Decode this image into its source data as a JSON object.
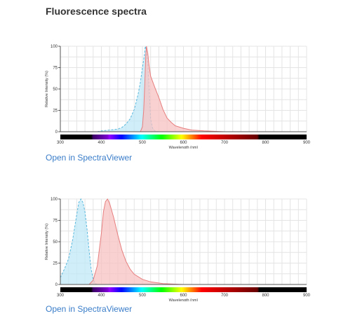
{
  "page_title": "Fluorescence spectra",
  "link_color": "#3a7dc9",
  "colors": {
    "excitation_fill": "#bfe8f7",
    "excitation_line": "#5bb8dc",
    "emission_fill": "#f7c1c1",
    "emission_line": "#e77e7e",
    "grid": "#e4e4e4",
    "axis": "#555555"
  },
  "chart_data": [
    {
      "type": "area",
      "xlabel": "Wavelength (nm)",
      "ylabel": "Relative Intensity (%)",
      "xlim": [
        300,
        900
      ],
      "ylim": [
        0,
        100
      ],
      "x_ticks": [
        "300",
        "400",
        "500",
        "600",
        "700",
        "800",
        "900"
      ],
      "y_ticks": [
        "0",
        "25",
        "50",
        "75",
        "100"
      ],
      "grid": true,
      "spectrum_bar": true,
      "link_label": "Open in SpectraViewer",
      "series": [
        {
          "role": "excitation",
          "line_style": "dashed",
          "points": [
            [
              390,
              0
            ],
            [
              400,
              1
            ],
            [
              420,
              2
            ],
            [
              440,
              3
            ],
            [
              450,
              5
            ],
            [
              460,
              9
            ],
            [
              470,
              15
            ],
            [
              480,
              26
            ],
            [
              485,
              35
            ],
            [
              490,
              45
            ],
            [
              495,
              58
            ],
            [
              500,
              75
            ],
            [
              505,
              90
            ],
            [
              507,
              100
            ],
            [
              510,
              96
            ],
            [
              513,
              80
            ],
            [
              517,
              45
            ],
            [
              520,
              15
            ],
            [
              525,
              4
            ],
            [
              530,
              1
            ],
            [
              540,
              0
            ]
          ]
        },
        {
          "role": "emission",
          "line_style": "solid",
          "points": [
            [
              495,
              0
            ],
            [
              500,
              6
            ],
            [
              503,
              25
            ],
            [
              506,
              60
            ],
            [
              508,
              88
            ],
            [
              510,
              100
            ],
            [
              513,
              92
            ],
            [
              516,
              78
            ],
            [
              520,
              65
            ],
            [
              530,
              52
            ],
            [
              540,
              40
            ],
            [
              550,
              26
            ],
            [
              560,
              16
            ],
            [
              570,
              11
            ],
            [
              580,
              7
            ],
            [
              600,
              4
            ],
            [
              620,
              2
            ],
            [
              650,
              1
            ],
            [
              700,
              0
            ]
          ]
        }
      ]
    },
    {
      "type": "area",
      "xlabel": "Wavelength (nm)",
      "ylabel": "Relative Intensity (%)",
      "xlim": [
        300,
        900
      ],
      "ylim": [
        0,
        100
      ],
      "x_ticks": [
        "300",
        "400",
        "500",
        "600",
        "700",
        "800",
        "900"
      ],
      "y_ticks": [
        "0",
        "25",
        "50",
        "75",
        "100"
      ],
      "grid": true,
      "spectrum_bar": true,
      "link_label": "Open in SpectraViewer",
      "series": [
        {
          "role": "excitation",
          "line_style": "dashed",
          "points": [
            [
              300,
              8
            ],
            [
              310,
              18
            ],
            [
              320,
              30
            ],
            [
              330,
              52
            ],
            [
              340,
              82
            ],
            [
              345,
              96
            ],
            [
              350,
              100
            ],
            [
              355,
              96
            ],
            [
              360,
              85
            ],
            [
              365,
              65
            ],
            [
              370,
              40
            ],
            [
              375,
              18
            ],
            [
              380,
              6
            ],
            [
              385,
              1
            ],
            [
              390,
              0
            ]
          ]
        },
        {
          "role": "emission",
          "line_style": "solid",
          "points": [
            [
              370,
              0
            ],
            [
              380,
              5
            ],
            [
              390,
              22
            ],
            [
              400,
              60
            ],
            [
              405,
              85
            ],
            [
              410,
              97
            ],
            [
              415,
              100
            ],
            [
              420,
              95
            ],
            [
              430,
              78
            ],
            [
              440,
              58
            ],
            [
              450,
              40
            ],
            [
              460,
              27
            ],
            [
              470,
              18
            ],
            [
              480,
              12
            ],
            [
              500,
              6
            ],
            [
              520,
              3
            ],
            [
              550,
              1
            ],
            [
              600,
              0
            ]
          ]
        }
      ]
    }
  ]
}
